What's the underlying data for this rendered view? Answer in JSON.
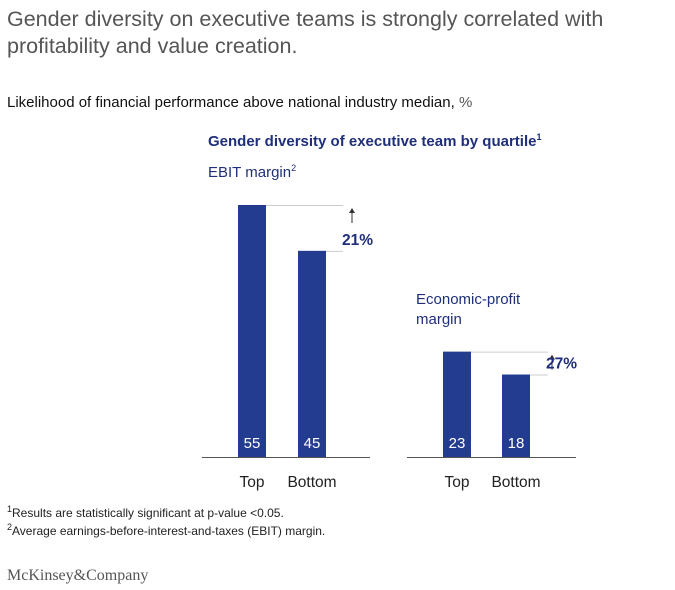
{
  "title": "Gender diversity on executive teams is strongly correlated with profitability and value creation.",
  "subtitle": "Likelihood of financial performance above national industry median,",
  "subtitle_unit": "%",
  "group_title": "Gender diversity of executive team by quartile",
  "group_title_note": "1",
  "colors": {
    "bar": "#243c8f",
    "text_accent": "#1f2f7a",
    "axis": "#555555"
  },
  "chart_data": [
    {
      "type": "bar",
      "title": "EBIT margin",
      "title_note": "2",
      "categories": [
        "Top",
        "Bottom"
      ],
      "values": [
        55,
        45
      ],
      "difference_label": "21%"
    },
    {
      "type": "bar",
      "title": "Economic-profit margin",
      "title_note": "",
      "categories": [
        "Top",
        "Bottom"
      ],
      "values": [
        23,
        18
      ],
      "difference_label": "27%"
    }
  ],
  "footnotes": [
    {
      "mark": "1",
      "text": "Results are statistically significant at p-value <0.05."
    },
    {
      "mark": "2",
      "text": "Average earnings-before-interest-and-taxes (EBIT) margin."
    }
  ],
  "brand": "McKinsey&Company"
}
